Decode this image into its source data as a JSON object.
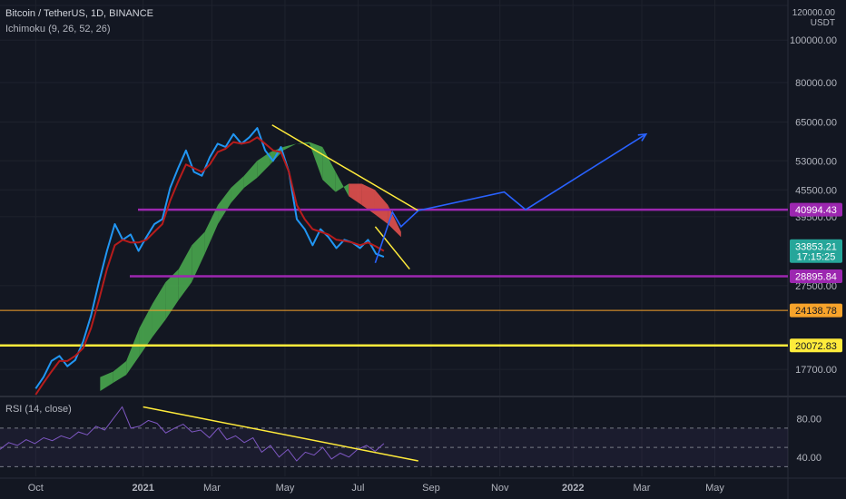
{
  "header": {
    "title": "Bitcoin / TetherUS, 1D, BINANCE",
    "indicator": "Ichimoku (9, 26, 52, 26)",
    "rsi_label": "RSI (14, close)",
    "top_price": "120000.00",
    "currency": "USDT"
  },
  "colors": {
    "background": "#131722",
    "price_blue": "#2196f3",
    "kijun_red": "#b71c1c",
    "cloud_green": "#4caf50",
    "cloud_red": "#ef5350",
    "trend_yellow": "#ffeb3b",
    "level_purple": "#9c27b0",
    "projection_blue": "#2962ff",
    "rsi_purple": "#7e57c2",
    "tag_orange": "#f7a32b"
  },
  "chart_data": [
    {
      "type": "line",
      "title": "Bitcoin / TetherUS, 1D, BINANCE",
      "y_scale": "log",
      "ylim": [
        15500,
        120000
      ],
      "y_ticks": [
        "120000.00",
        "100000.00",
        "80000.00",
        "65000.00",
        "53000.00",
        "45500.00",
        "39500.00",
        "27500.00",
        "17700.00"
      ],
      "x_ticks": [
        "Oct",
        "2021",
        "Mar",
        "May",
        "Jul",
        "Sep",
        "Nov",
        "2022",
        "Mar",
        "May"
      ],
      "price_labels": [
        {
          "label": "40994.43",
          "color": "#9c27b0",
          "text_color": "#ffffff"
        },
        {
          "label": "33853.21",
          "sub": "17:15:25",
          "color": "#26a69a",
          "text_color": "#ffffff"
        },
        {
          "label": "28895.84",
          "color": "#9c27b0",
          "text_color": "#ffffff"
        },
        {
          "label": "24138.78",
          "color": "#f7a32b",
          "text_color": "#131722"
        },
        {
          "label": "20072.83",
          "color": "#ffeb3b",
          "text_color": "#131722"
        }
      ],
      "horizontal_levels": [
        {
          "price": 40994.43,
          "color": "#9c27b0"
        },
        {
          "price": 28895.84,
          "color": "#9c27b0"
        },
        {
          "price": 24138.78,
          "color": "#f7a32b"
        },
        {
          "price": 20072.83,
          "color": "#ffeb3b"
        }
      ],
      "series": [
        {
          "values": [
            16000,
            17000,
            18500,
            19000,
            18000,
            18600,
            20500,
            23500,
            28000,
            33000,
            38000,
            35000,
            36000,
            33000,
            35500,
            38000,
            39000,
            46000,
            51000,
            56000,
            50000,
            49000,
            54000,
            58000,
            57000,
            61000,
            58000,
            60000,
            63000,
            56000,
            53000,
            57000,
            50000,
            39000,
            37000,
            34000,
            37000,
            35500,
            33500,
            35000,
            34500,
            33500,
            35000,
            32500,
            32000
          ]
        },
        {
          "values": [
            15500,
            16500,
            17500,
            18500,
            18500,
            19000,
            19800,
            22000,
            25500,
            30000,
            34000,
            35000,
            34500,
            34500,
            35000,
            36500,
            38000,
            43000,
            47500,
            52000,
            51000,
            50000,
            52000,
            55500,
            56500,
            58500,
            58000,
            58500,
            60000,
            58000,
            56000,
            55500,
            50000,
            42000,
            39000,
            37000,
            36500,
            36000,
            35000,
            34800,
            34500,
            34000,
            34500,
            33800,
            33000
          ]
        }
      ],
      "cloud": {
        "span_a": [
          17000,
          17500,
          18500,
          22000,
          25000,
          28000,
          30000,
          34000,
          36500,
          42000,
          46000,
          49000,
          53000,
          55500,
          57000,
          58000,
          58500,
          57000,
          50000,
          44000,
          42000,
          40000,
          38000,
          35500
        ],
        "span_b": [
          15800,
          16500,
          17200,
          19000,
          21000,
          23000,
          25500,
          28000,
          32500,
          38000,
          42500,
          46000,
          48500,
          52000,
          56000,
          58000,
          58000,
          48000,
          45000,
          47000,
          47000,
          45500,
          42000,
          36500
        ]
      },
      "trendlines": [
        {
          "points": [
            [
              2021.3,
              64000
            ],
            [
              2021.64,
              40800
            ]
          ]
        },
        {
          "points": [
            [
              2021.54,
              37500
            ],
            [
              2021.62,
              30000
            ]
          ]
        }
      ],
      "projection": [
        [
          2021.54,
          31000
        ],
        [
          2021.58,
          40500
        ],
        [
          2021.6,
          37500
        ],
        [
          2021.64,
          40800
        ],
        [
          2021.84,
          45000
        ],
        [
          2021.89,
          41000
        ],
        [
          2022.17,
          61000
        ]
      ]
    },
    {
      "type": "line",
      "title": "RSI (14, close)",
      "ylim": [
        20,
        100
      ],
      "y_ticks": [
        "80.00",
        "40.00"
      ],
      "bands": [
        70,
        50,
        30
      ],
      "values": [
        48,
        55,
        52,
        58,
        54,
        60,
        57,
        62,
        59,
        66,
        63,
        72,
        68,
        80,
        92,
        70,
        72,
        78,
        75,
        65,
        70,
        74,
        66,
        68,
        60,
        70,
        58,
        62,
        55,
        60,
        45,
        52,
        40,
        48,
        36,
        45,
        42,
        50,
        38,
        44,
        40,
        48,
        52,
        46,
        54
      ],
      "trendline": [
        [
          0.84,
          92
        ],
        [
          5.3,
          36
        ]
      ]
    }
  ]
}
